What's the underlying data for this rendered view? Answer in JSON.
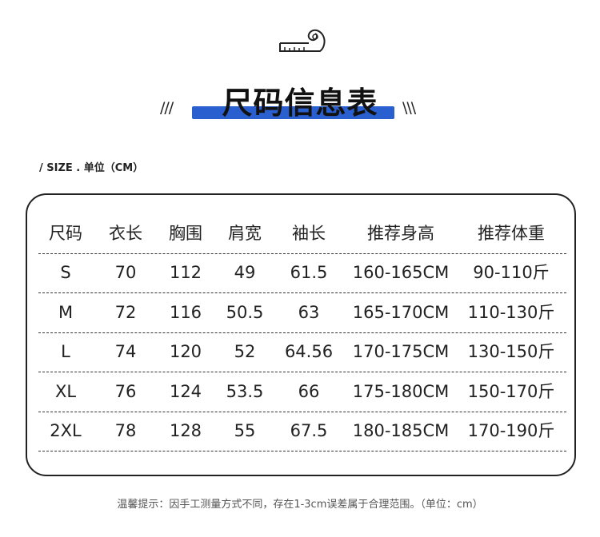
{
  "icon": "tape-measure-icon",
  "title": "尺码信息表",
  "left_decor": "///",
  "right_decor": "\\\\\\",
  "unit_label": "/ SIZE . 单位（CM）",
  "accent_color": "#2a5fcf",
  "table": {
    "headers": [
      "尺码",
      "衣长",
      "胸围",
      "肩宽",
      "袖长",
      "推荐身高",
      "推荐体重"
    ],
    "rows": [
      [
        "S",
        "70",
        "112",
        "49",
        "61.5",
        "160-165CM",
        "90-110斤"
      ],
      [
        "M",
        "72",
        "116",
        "50.5",
        "63",
        "165-170CM",
        "110-130斤"
      ],
      [
        "L",
        "74",
        "120",
        "52",
        "64.56",
        "170-175CM",
        "130-150斤"
      ],
      [
        "XL",
        "76",
        "124",
        "53.5",
        "66",
        "175-180CM",
        "150-170斤"
      ],
      [
        "2XL",
        "78",
        "128",
        "55",
        "67.5",
        "180-185CM",
        "170-190斤"
      ]
    ]
  },
  "note": "温馨提示：因手工测量方式不同，存在1-3cm误差属于合理范围。（单位：cm）"
}
